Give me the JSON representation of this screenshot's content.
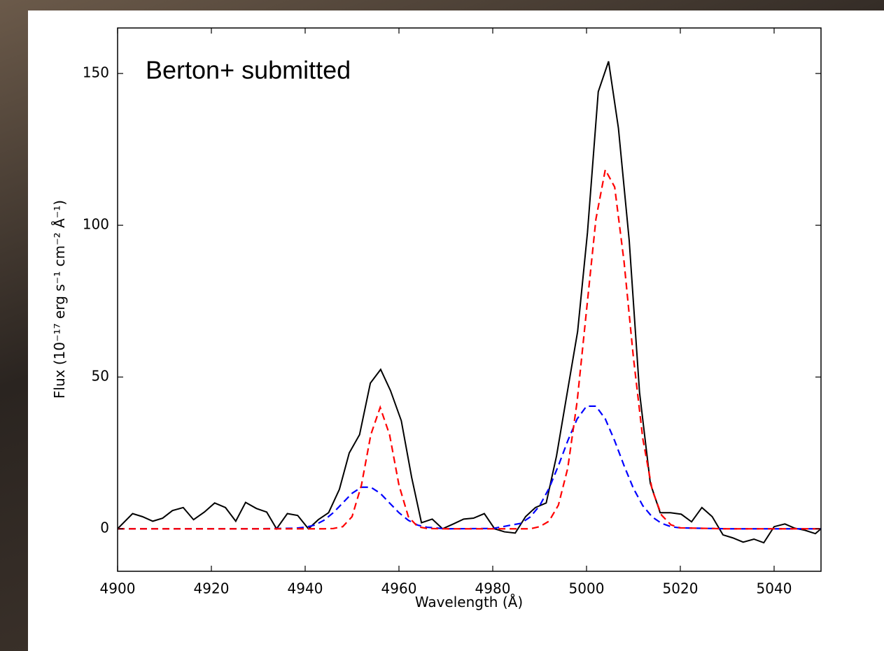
{
  "chart_data": {
    "type": "line",
    "annotation": "Berton+ submitted",
    "xlabel": "Wavelength (Å)",
    "ylabel": "Flux (10⁻¹⁷ erg s⁻¹ cm⁻² Å⁻¹)",
    "xlim": [
      4900,
      5050
    ],
    "ylim": [
      -14,
      165
    ],
    "xticks": [
      4900,
      4920,
      4940,
      4960,
      4980,
      5000,
      5020,
      5040
    ],
    "yticks": [
      0,
      50,
      100,
      150
    ],
    "series": [
      {
        "color": "#000000",
        "linestyle": "solid",
        "x": [
          4900.0,
          4903.2,
          4905.3,
          4907.5,
          4909.6,
          4911.7,
          4914.0,
          4916.2,
          4918.5,
          4920.7,
          4923.0,
          4925.2,
          4927.3,
          4929.6,
          4931.8,
          4933.9,
          4936.2,
          4938.4,
          4940.7,
          4942.8,
          4945.0,
          4947.3,
          4949.4,
          4951.6,
          4953.9,
          4956.1,
          4958.2,
          4960.5,
          4962.7,
          4964.8,
          4967.1,
          4969.3,
          4971.6,
          4973.8,
          4975.9,
          4978.2,
          4980.4,
          4982.5,
          4984.8,
          4987.0,
          4989.1,
          4991.4,
          4993.6,
          4995.9,
          4998.1,
          5000.2,
          5002.5,
          5004.7,
          5006.8,
          5009.1,
          5011.3,
          5013.6,
          5015.7,
          5017.9,
          5020.2,
          5022.4,
          5024.6,
          5026.8,
          5029.1,
          5031.2,
          5033.4,
          5035.7,
          5037.8,
          5040.0,
          5042.3,
          5044.4,
          5046.6,
          5048.8,
          5050
        ],
        "values": [
          0,
          5,
          4,
          2.5,
          3.5,
          6,
          7,
          3,
          5.5,
          8.5,
          7,
          2.5,
          8.7,
          6.7,
          5.5,
          0,
          5,
          4.4,
          0,
          3,
          5.3,
          13,
          25,
          31,
          48,
          52.5,
          45.5,
          35.6,
          17,
          2,
          3.2,
          0,
          1.6,
          3.2,
          3.5,
          5,
          0,
          -1,
          -1.4,
          4,
          7,
          8.5,
          24,
          45,
          65,
          97.6,
          144,
          154,
          132,
          95,
          45,
          15,
          5.3,
          5.3,
          4.8,
          2.3,
          7,
          4,
          -2,
          -3,
          -4.4,
          -3.4,
          -4.6,
          0.7,
          1.6,
          0.2,
          -0.5,
          -1.6,
          0
        ]
      },
      {
        "color": "#0000ff",
        "linestyle": "dashed",
        "x": [
          4900,
          4930,
          4938,
          4940,
          4942,
          4944,
          4946,
          4948,
          4950,
          4952,
          4954,
          4956,
          4958,
          4960,
          4962,
          4964,
          4966,
          4970,
          4980,
          4986,
          4988,
          4990,
          4992,
          4994,
          4996,
          4998,
          5000,
          5002,
          5004,
          5006,
          5008,
          5010,
          5012,
          5014,
          5016,
          5018,
          5020,
          5030,
          5050
        ],
        "values": [
          0,
          0,
          0.2,
          0.5,
          1.2,
          2.8,
          5.3,
          8.5,
          11.7,
          13.7,
          13.7,
          11.7,
          8.5,
          5.3,
          2.8,
          1.2,
          0.5,
          0,
          0.1,
          1.8,
          3.9,
          7.6,
          13.3,
          20.8,
          29.0,
          36.2,
          40.4,
          40.4,
          36.2,
          29.0,
          20.8,
          13.3,
          7.6,
          3.9,
          1.8,
          0.7,
          0.3,
          0,
          0
        ]
      },
      {
        "color": "#ff0000",
        "linestyle": "dashed",
        "x": [
          4900,
          4930,
          4938,
          4940,
          4942,
          4944,
          4946,
          4948,
          4950,
          4952,
          4954,
          4956,
          4958,
          4960,
          4962,
          4964,
          4966,
          4970,
          4980,
          4986,
          4988,
          4990,
          4992,
          4994,
          4996,
          4998,
          5000,
          5002,
          5004,
          5006,
          5008,
          5010,
          5012,
          5014,
          5016,
          5018,
          5020,
          5030,
          5050
        ],
        "values": [
          0,
          0,
          0,
          0,
          0,
          0,
          0.1,
          0.7,
          4.0,
          14.4,
          31.0,
          40,
          31.0,
          14.4,
          4.0,
          0.7,
          0.1,
          0,
          0,
          0,
          0,
          0.7,
          2.5,
          7.8,
          20,
          42,
          72,
          102,
          118.3,
          112.6,
          88,
          56.4,
          29.7,
          12.8,
          4.5,
          1.3,
          0.3,
          0,
          0
        ]
      }
    ]
  }
}
